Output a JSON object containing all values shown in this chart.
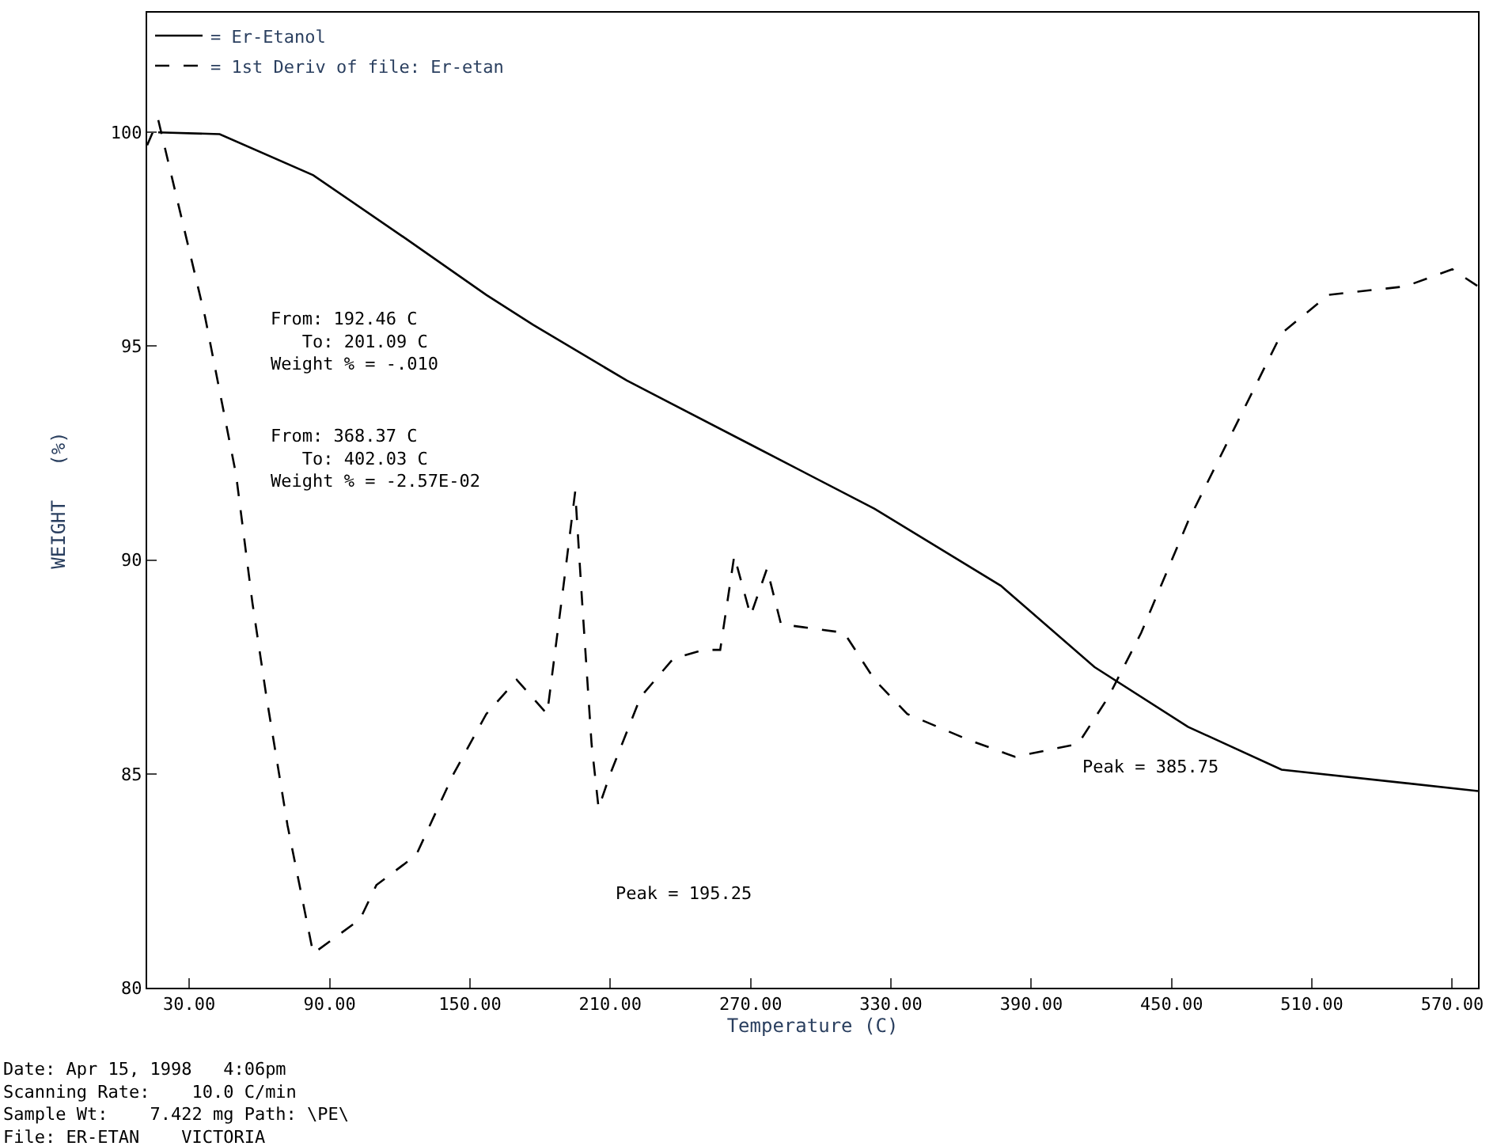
{
  "chart_data": {
    "type": "line",
    "xlabel": "Temperature (C)",
    "ylabel": "WEIGHT   (%)",
    "xlim": [
      12,
      581
    ],
    "ylim": [
      80,
      102.8
    ],
    "xticks": [
      {
        "value": 30,
        "label": "30.00"
      },
      {
        "value": 90,
        "label": "90.00"
      },
      {
        "value": 150,
        "label": "150.00"
      },
      {
        "value": 210,
        "label": "210.00"
      },
      {
        "value": 270,
        "label": "270.00"
      },
      {
        "value": 330,
        "label": "330.00"
      },
      {
        "value": 390,
        "label": "390.00"
      },
      {
        "value": 450,
        "label": "450.00"
      },
      {
        "value": 510,
        "label": "510.00"
      },
      {
        "value": 570,
        "label": "570.00"
      }
    ],
    "yticks": [
      80,
      85,
      90,
      95,
      100
    ],
    "legend": "top left",
    "series": [
      {
        "name": "= Er-Etanol",
        "color": "#000000",
        "line_style": "solid",
        "x": [
          16.7,
          43,
          83,
          123,
          157,
          177,
          217,
          270,
          323,
          377,
          417,
          457,
          497,
          581
        ],
        "values": [
          100,
          99.96,
          99.0,
          97.5,
          96.2,
          95.5,
          94.2,
          92.7,
          91.2,
          89.4,
          87.5,
          86.1,
          85.1,
          84.6
        ]
      },
      {
        "name": "= 1st Deriv of file: Er-etan",
        "color": "#000000",
        "line_style": "dashed",
        "x": [
          12,
          16.7,
          36.7,
          50,
          57,
          63,
          72,
          83,
          103,
          110,
          127,
          143,
          157,
          170,
          183,
          190,
          195,
          198,
          202,
          205,
          210,
          223,
          237,
          250,
          257,
          263,
          270,
          277,
          283,
          310,
          323,
          337,
          363,
          383,
          410,
          423,
          437,
          457,
          477,
          497,
          517,
          550,
          570,
          581
        ],
        "values": [
          99.7,
          100.3,
          95.7,
          92,
          89,
          86.8,
          83.8,
          80.8,
          81.6,
          82.4,
          83.1,
          85,
          86.4,
          87.2,
          86.4,
          89.4,
          91.6,
          89,
          85.7,
          84.2,
          85,
          86.8,
          87.7,
          87.9,
          87.9,
          90.1,
          88.7,
          89.8,
          88.5,
          88.3,
          87.2,
          86.4,
          85.8,
          85.4,
          85.7,
          86.8,
          88.3,
          90.9,
          93.1,
          95.3,
          96.2,
          96.4,
          96.8,
          96.4
        ]
      }
    ],
    "annotations": [
      "From: 192.46 C\n   To: 201.09 C\nWeight % = -.010",
      "From: 368.37 C\n   To: 402.03 C\nWeight % = -2.57E-02",
      "Peak = 195.25",
      "Peak = 385.75",
      "Date: Apr 15, 1998   4:06pm\nScanning Rate:    10.0 C/min\nSample Wt:    7.422 mg Path: \\PE\\\nFile: ER-ETAN    VICTORIA"
    ]
  }
}
